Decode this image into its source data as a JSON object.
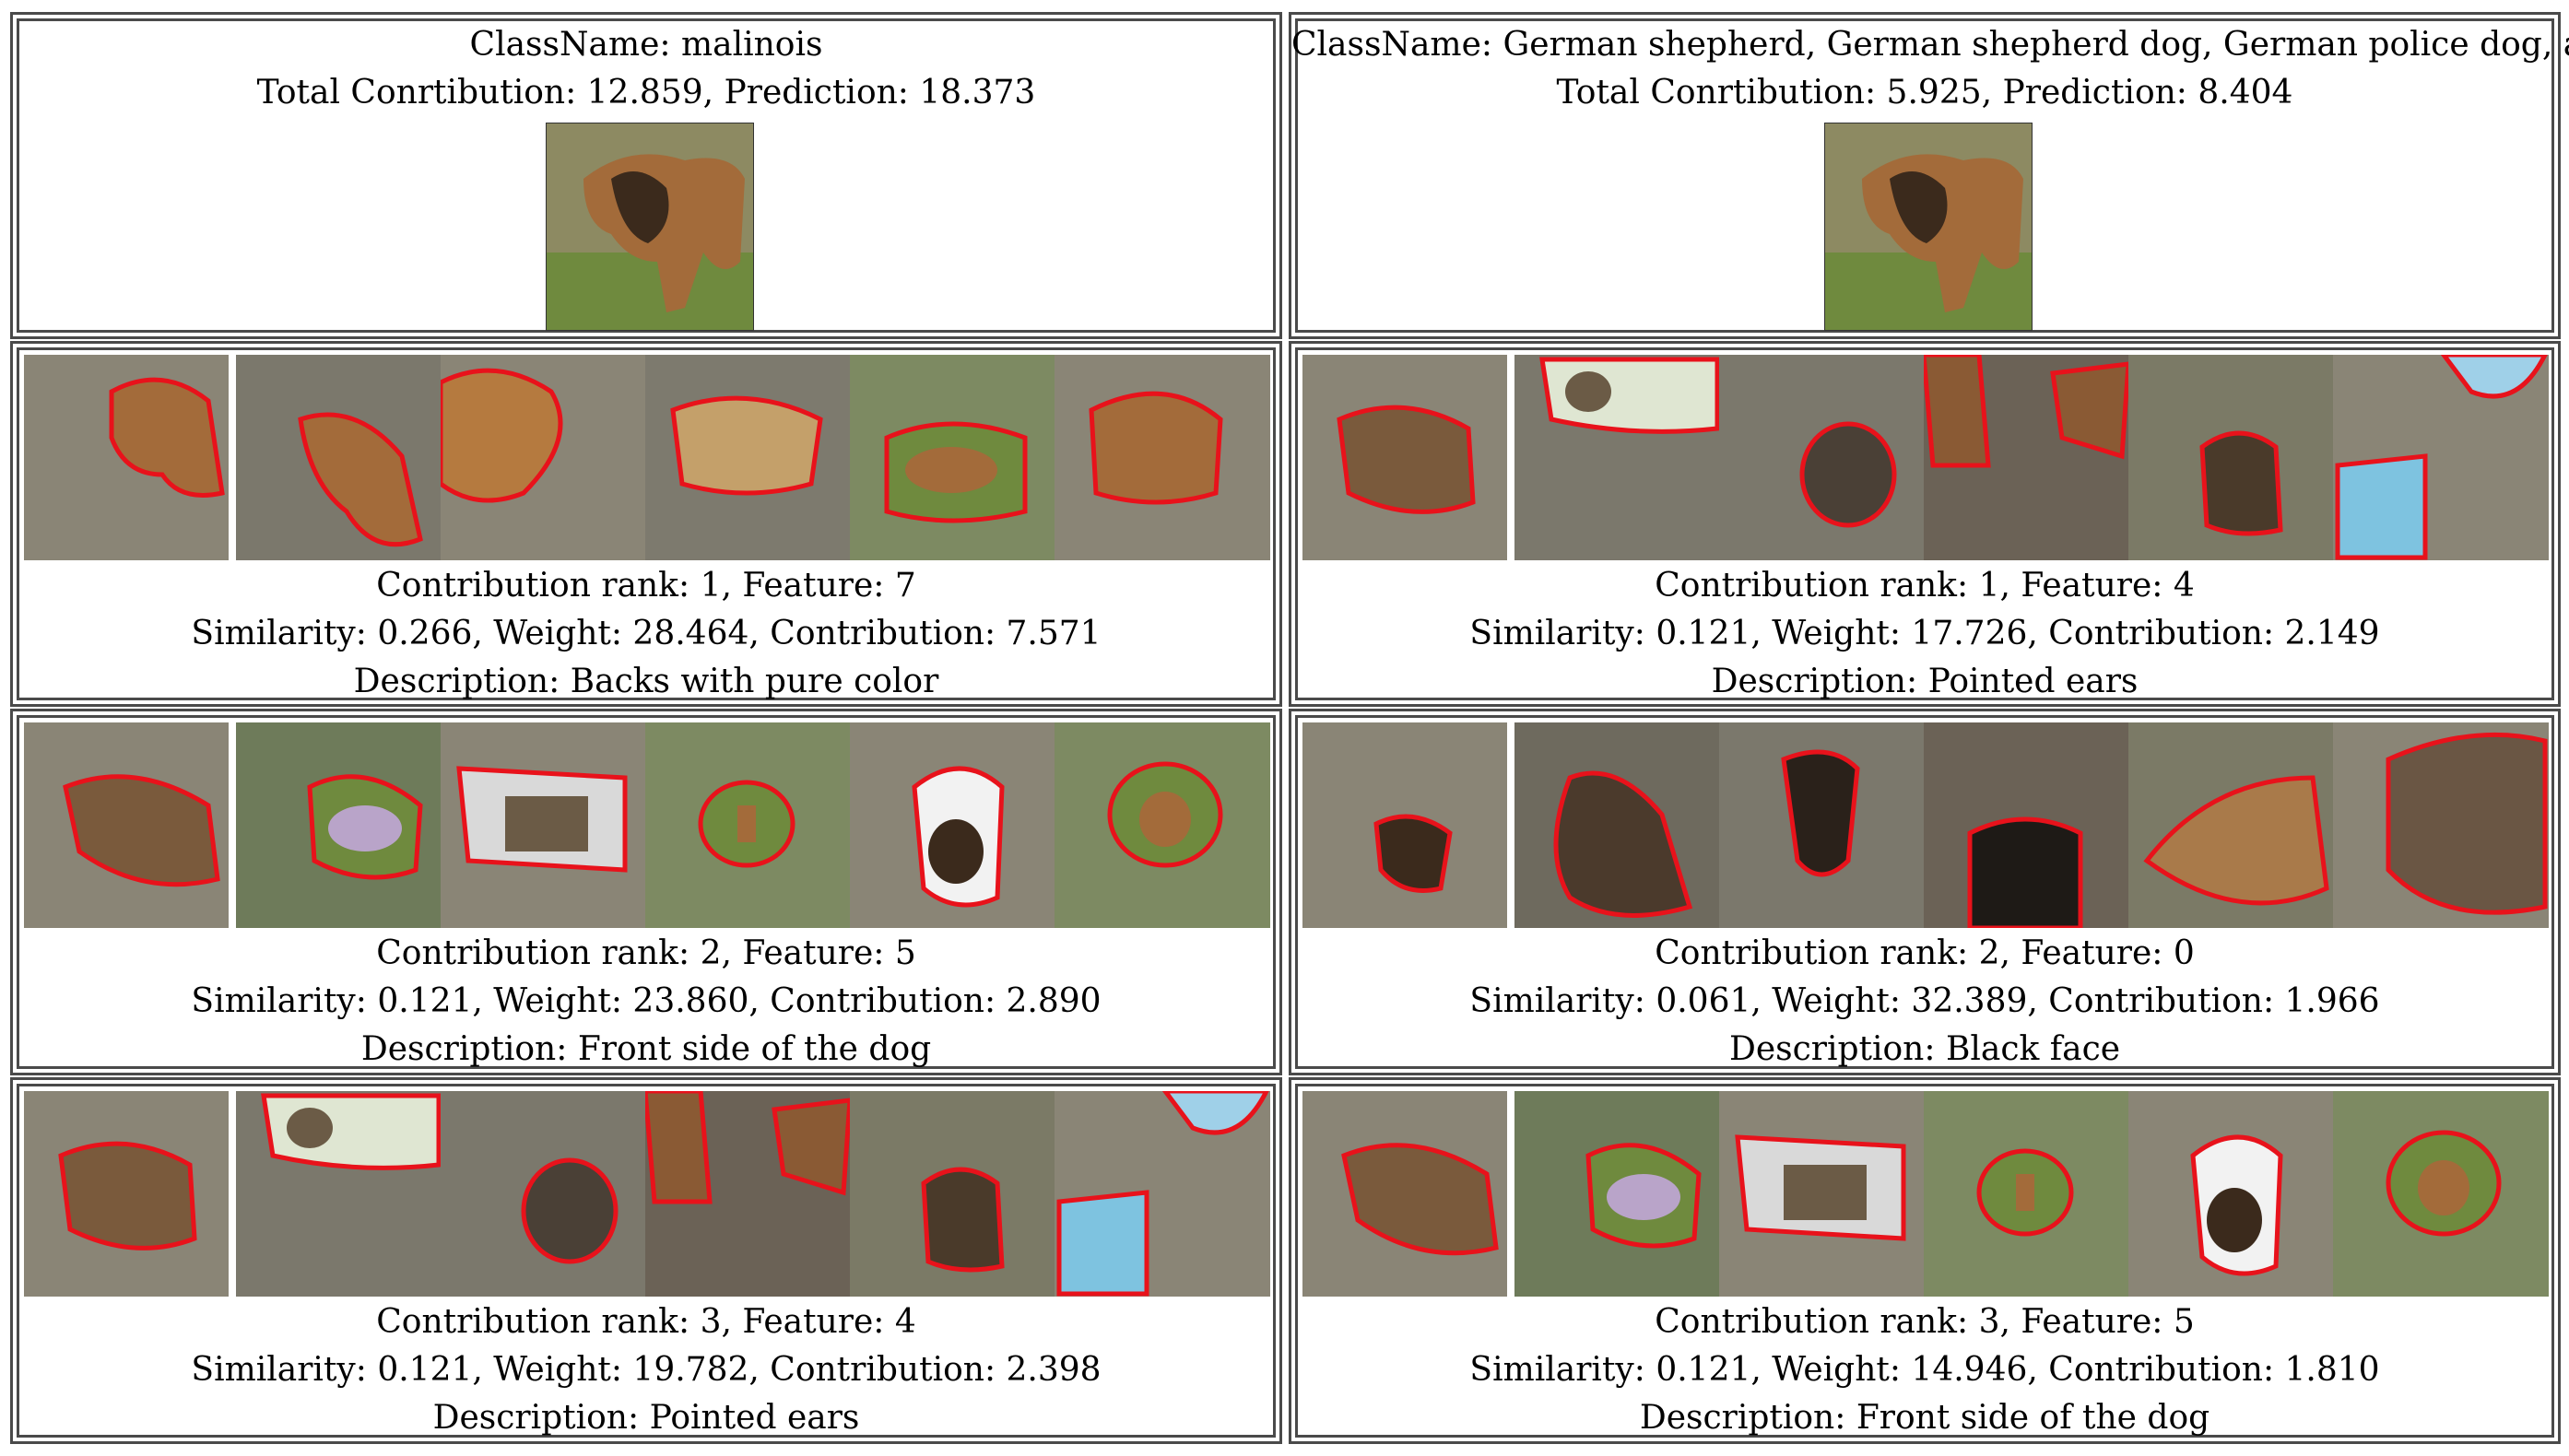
{
  "panels": [
    {
      "header": {
        "class_line": "ClassName: malinois",
        "summary_line": "Total Conrtibution: 12.859, Prediction: 18.373"
      },
      "features": [
        {
          "rank_line": "Contribution rank: 1, Feature: 7",
          "stats_line": "Similarity: 0.266, Weight: 28.464, Contribution: 7.571",
          "description_line": "Description: Backs with pure color"
        },
        {
          "rank_line": "Contribution rank: 2, Feature: 5",
          "stats_line": "Similarity: 0.121, Weight: 23.860, Contribution: 2.890",
          "description_line": "Description: Front side of the dog"
        },
        {
          "rank_line": "Contribution rank: 3, Feature: 4",
          "stats_line": "Similarity: 0.121, Weight: 19.782, Contribution: 2.398",
          "description_line": "Description: Pointed ears"
        }
      ]
    },
    {
      "header": {
        "class_line": "ClassName: German shepherd, German shepherd dog, German police dog, alsatian",
        "summary_line": "Total Conrtibution: 5.925, Prediction: 8.404"
      },
      "features": [
        {
          "rank_line": "Contribution rank: 1, Feature: 4",
          "stats_line": "Similarity: 0.121, Weight: 17.726, Contribution: 2.149",
          "description_line": "Description: Pointed ears"
        },
        {
          "rank_line": "Contribution rank: 2, Feature: 0",
          "stats_line": "Similarity: 0.061, Weight: 32.389, Contribution: 1.966",
          "description_line": "Description: Black face"
        },
        {
          "rank_line": "Contribution rank: 3, Feature: 5",
          "stats_line": "Similarity: 0.121, Weight: 14.946, Contribution: 1.810",
          "description_line": "Description: Front side of the dog"
        }
      ]
    }
  ],
  "colors": {
    "border": "#4a4a4a",
    "highlight_outline": "#e8121b",
    "dim_overlay": "#8a8576",
    "grass": "#6f8a3e",
    "dog_tan": "#a36b3a"
  }
}
